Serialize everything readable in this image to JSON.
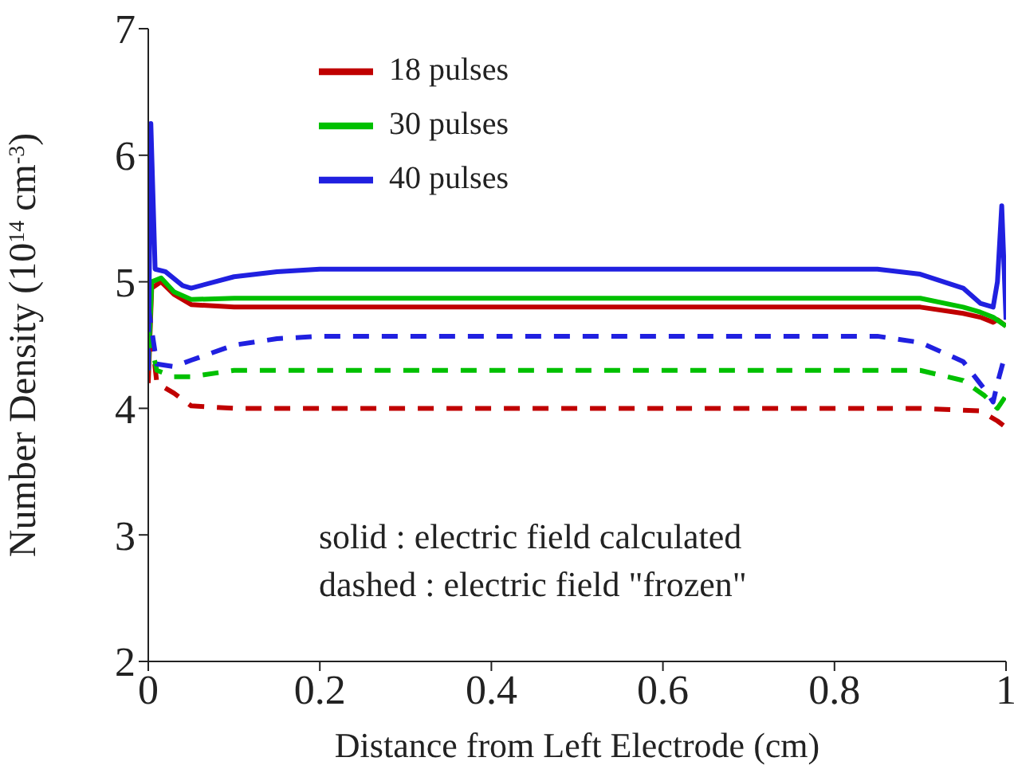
{
  "chart_data": {
    "type": "line",
    "xlabel": "Distance from Left Electrode (cm)",
    "ylabel": "Number Density (10$^{14}$ cm$^{-3}$)",
    "xlim": [
      0,
      1
    ],
    "xticks": [
      0,
      0.2,
      0.4,
      0.6,
      0.8,
      1
    ],
    "ylim": [
      2,
      7
    ],
    "yticks": [
      2,
      3,
      4,
      5,
      6,
      7
    ],
    "grid": false,
    "legend": "top",
    "marker": "none",
    "annotations": [
      "solid : electric field calculated",
      "dashed : electric field \"frozen\""
    ],
    "series": [
      {
        "name": "18 pulses",
        "color": "#c00000",
        "line_style": "solid",
        "x": [
          0,
          0.004,
          0.015,
          0.03,
          0.05,
          0.1,
          0.9,
          0.95,
          0.97,
          0.985,
          0.99,
          1
        ],
        "values": [
          4.2,
          4.95,
          5.0,
          4.9,
          4.82,
          4.8,
          4.8,
          4.75,
          4.72,
          4.68,
          4.7,
          4.65
        ]
      },
      {
        "name": "30 pulses",
        "color": "#00c000",
        "line_style": "solid",
        "x": [
          0,
          0.004,
          0.015,
          0.03,
          0.05,
          0.1,
          0.9,
          0.95,
          0.97,
          0.985,
          1
        ],
        "values": [
          4.3,
          5.0,
          5.03,
          4.92,
          4.86,
          4.87,
          4.87,
          4.8,
          4.76,
          4.72,
          4.65
        ]
      },
      {
        "name": "40 pulses",
        "color": "#2020e0",
        "line_style": "solid",
        "x": [
          0,
          0.003,
          0.008,
          0.02,
          0.04,
          0.05,
          0.1,
          0.15,
          0.2,
          0.85,
          0.9,
          0.95,
          0.97,
          0.985,
          0.99,
          0.995,
          1
        ],
        "values": [
          4.3,
          6.25,
          5.1,
          5.08,
          4.97,
          4.95,
          5.04,
          5.08,
          5.1,
          5.1,
          5.06,
          4.95,
          4.83,
          4.8,
          5.0,
          5.6,
          4.7
        ]
      },
      {
        "color": "#c00000",
        "line_style": "dashed",
        "x": [
          0,
          0.01,
          0.03,
          0.05,
          0.1,
          0.9,
          0.97,
          0.99,
          1
        ],
        "values": [
          4.8,
          4.2,
          4.12,
          4.02,
          4.0,
          4.0,
          3.98,
          3.9,
          3.85
        ]
      },
      {
        "color": "#00c000",
        "line_style": "dashed",
        "x": [
          0,
          0.01,
          0.03,
          0.05,
          0.1,
          0.9,
          0.95,
          0.975,
          0.99,
          1
        ],
        "values": [
          4.6,
          4.3,
          4.25,
          4.25,
          4.3,
          4.3,
          4.22,
          4.1,
          4.0,
          4.1
        ]
      },
      {
        "color": "#2020e0",
        "line_style": "dashed",
        "x": [
          0,
          0.01,
          0.03,
          0.05,
          0.1,
          0.15,
          0.2,
          0.85,
          0.9,
          0.95,
          0.975,
          0.985,
          0.99,
          1
        ],
        "values": [
          4.8,
          4.35,
          4.33,
          4.38,
          4.5,
          4.55,
          4.57,
          4.57,
          4.52,
          4.37,
          4.15,
          4.05,
          4.2,
          4.45
        ]
      }
    ]
  }
}
